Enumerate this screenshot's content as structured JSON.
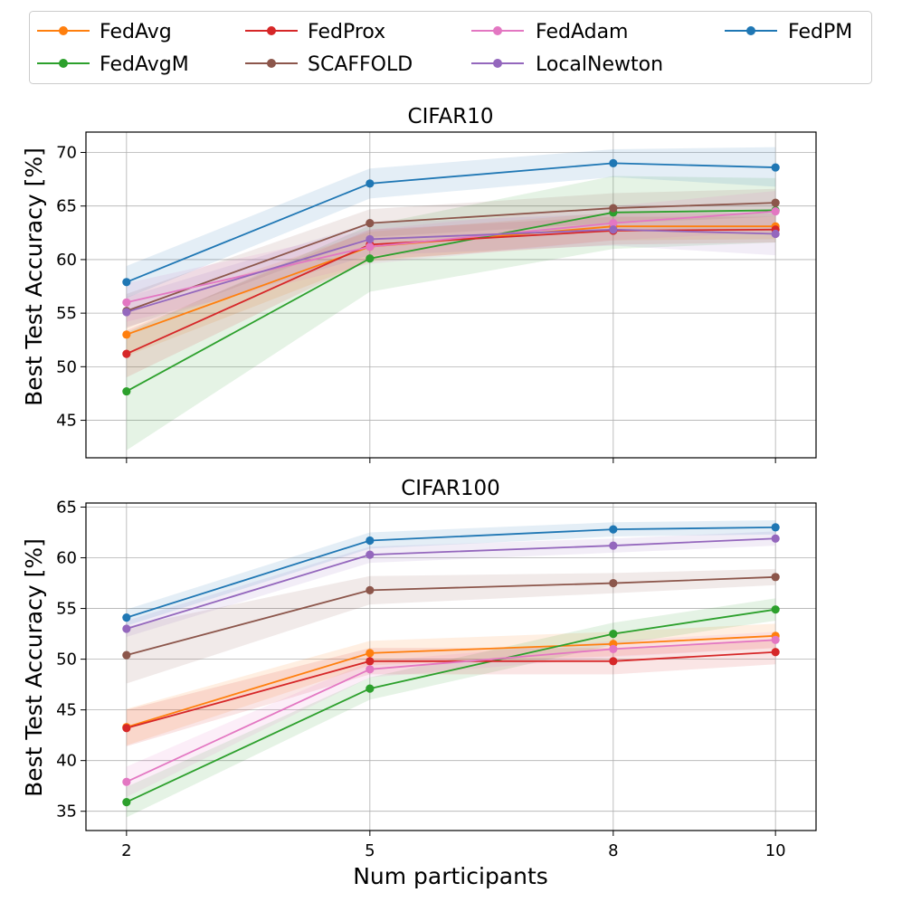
{
  "figure": {
    "xlabel": "Num participants",
    "legend": {
      "placement": "top",
      "entries": [
        "FedAvg",
        "FedProx",
        "FedAdam",
        "FedPM",
        "FedAvgM",
        "SCAFFOLD",
        "LocalNewton"
      ]
    },
    "colors": {
      "FedAvg": "#ff7f0e",
      "FedAvgM": "#2ca02c",
      "FedProx": "#d62728",
      "SCAFFOLD": "#8c564b",
      "FedAdam": "#e377c2",
      "LocalNewton": "#9467bd",
      "FedPM": "#1f77b4"
    }
  },
  "chart_data": [
    {
      "type": "line",
      "title": "CIFAR10",
      "ylabel": "Best Test Accuracy [%]",
      "xlabel": "",
      "x": [
        2,
        5,
        8,
        10
      ],
      "x_ticks": [
        "2",
        "5",
        "8",
        "10"
      ],
      "y_ticks": [
        45,
        50,
        55,
        60,
        65,
        70
      ],
      "ylim": [
        41.5,
        71.9
      ],
      "grid": true,
      "series": [
        {
          "name": "FedAvg",
          "values": [
            53.0,
            61.2,
            63.1,
            63.1
          ],
          "lower": [
            51.0,
            59.8,
            61.8,
            61.9
          ],
          "upper": [
            55.0,
            62.6,
            64.4,
            64.3
          ]
        },
        {
          "name": "FedAvgM",
          "values": [
            47.7,
            60.1,
            64.4,
            64.6
          ],
          "lower": [
            42.2,
            57.0,
            61.0,
            61.6
          ],
          "upper": [
            53.2,
            63.2,
            67.8,
            67.6
          ]
        },
        {
          "name": "FedProx",
          "values": [
            51.2,
            61.4,
            62.7,
            62.8
          ],
          "lower": [
            49.0,
            60.0,
            61.4,
            61.6
          ],
          "upper": [
            53.4,
            62.8,
            64.0,
            64.0
          ]
        },
        {
          "name": "SCAFFOLD",
          "values": [
            55.2,
            63.4,
            64.8,
            65.3
          ],
          "lower": [
            53.6,
            62.1,
            63.4,
            64.0
          ],
          "upper": [
            56.8,
            64.7,
            66.2,
            66.6
          ]
        },
        {
          "name": "FedAdam",
          "values": [
            56.0,
            61.2,
            63.4,
            64.5
          ],
          "lower": [
            54.2,
            59.6,
            61.8,
            62.6
          ],
          "upper": [
            57.8,
            62.8,
            65.0,
            66.4
          ]
        },
        {
          "name": "LocalNewton",
          "values": [
            55.1,
            61.9,
            62.8,
            62.4
          ],
          "lower": [
            53.7,
            60.4,
            61.3,
            60.4
          ],
          "upper": [
            56.5,
            63.4,
            64.3,
            64.4
          ]
        },
        {
          "name": "FedPM",
          "values": [
            57.9,
            67.1,
            69.0,
            68.6
          ],
          "lower": [
            56.4,
            65.7,
            67.7,
            66.8
          ],
          "upper": [
            59.4,
            68.5,
            70.3,
            70.5
          ]
        }
      ]
    },
    {
      "type": "line",
      "title": "CIFAR100",
      "ylabel": "Best Test Accuracy [%]",
      "xlabel": "Num participants",
      "x": [
        2,
        5,
        8,
        10
      ],
      "x_ticks": [
        "2",
        "5",
        "8",
        "10"
      ],
      "y_ticks": [
        35,
        40,
        45,
        50,
        55,
        60,
        65
      ],
      "ylim": [
        33.1,
        65.4
      ],
      "grid": true,
      "series": [
        {
          "name": "FedAvg",
          "values": [
            43.3,
            50.6,
            51.5,
            52.3
          ],
          "lower": [
            41.5,
            49.4,
            50.3,
            51.1
          ],
          "upper": [
            45.1,
            51.8,
            52.7,
            53.5
          ]
        },
        {
          "name": "FedAvgM",
          "values": [
            35.9,
            47.1,
            52.5,
            54.9
          ],
          "lower": [
            34.4,
            46.0,
            51.4,
            53.8
          ],
          "upper": [
            37.4,
            48.2,
            53.6,
            56.0
          ]
        },
        {
          "name": "FedProx",
          "values": [
            43.2,
            49.8,
            49.8,
            50.7
          ],
          "lower": [
            41.4,
            48.5,
            48.5,
            49.5
          ],
          "upper": [
            45.0,
            51.1,
            51.1,
            51.9
          ]
        },
        {
          "name": "SCAFFOLD",
          "values": [
            50.4,
            56.8,
            57.5,
            58.1
          ],
          "lower": [
            47.6,
            55.4,
            56.5,
            57.3
          ],
          "upper": [
            53.2,
            58.2,
            58.5,
            58.9
          ]
        },
        {
          "name": "FedAdam",
          "values": [
            37.9,
            49.0,
            51.0,
            51.9
          ],
          "lower": [
            36.4,
            48.2,
            50.2,
            51.1
          ],
          "upper": [
            39.4,
            49.8,
            51.8,
            52.7
          ]
        },
        {
          "name": "LocalNewton",
          "values": [
            53.0,
            60.3,
            61.2,
            61.9
          ],
          "lower": [
            52.2,
            59.5,
            60.5,
            61.2
          ],
          "upper": [
            53.8,
            61.1,
            61.9,
            62.6
          ]
        },
        {
          "name": "FedPM",
          "values": [
            54.1,
            61.7,
            62.8,
            63.0
          ],
          "lower": [
            53.3,
            60.9,
            62.1,
            62.3
          ],
          "upper": [
            54.9,
            62.5,
            63.5,
            63.7
          ]
        }
      ]
    }
  ]
}
